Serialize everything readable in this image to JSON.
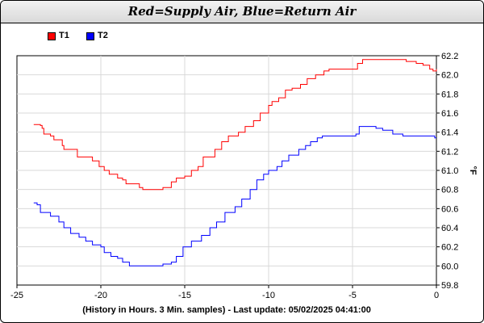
{
  "chart_data": {
    "type": "line",
    "title": "Red=Supply Air, Blue=Return Air",
    "xlabel": "(History in Hours. 3 Min. samples) - Last update: 05/02/2025 04:41:00",
    "ylabel": "°F",
    "xlim": [
      -25,
      0
    ],
    "ylim": [
      59.8,
      62.2
    ],
    "x_ticks": [
      -25,
      -20,
      -15,
      -10,
      -5,
      0
    ],
    "y_ticks": [
      59.8,
      60.0,
      60.2,
      60.4,
      60.6,
      60.8,
      61.0,
      61.2,
      61.4,
      61.6,
      61.8,
      62.0,
      62.2
    ],
    "grid": true,
    "legend_position": "top-left",
    "series": [
      {
        "name": "T1",
        "color": "#ff0000",
        "x": [
          -24,
          -23.6,
          -23.5,
          -23.4,
          -23,
          -22.8,
          -22.3,
          -22.2,
          -21.8,
          -21.4,
          -20.8,
          -20.5,
          -20.1,
          -19.8,
          -19.5,
          -19,
          -18.7,
          -18.5,
          -17.7,
          -17.5,
          -17.0,
          -16.7,
          -16.3,
          -15.8,
          -15.5,
          -15.0,
          -14.6,
          -14.2,
          -13.9,
          -13.2,
          -12.8,
          -12.4,
          -11.8,
          -11.4,
          -10.9,
          -10.5,
          -10.0,
          -9.8,
          -9.4,
          -9.0,
          -8.6,
          -8.1,
          -7.7,
          -7.2,
          -6.7,
          -6.4,
          -6.0,
          -5.5,
          -5.2,
          -4.7,
          -4.4,
          -3.8,
          -3.2,
          -2.4,
          -1.8,
          -1.2,
          -0.8,
          -0.4,
          -0.2,
          0
        ],
        "y": [
          61.48,
          61.47,
          61.44,
          61.38,
          61.36,
          61.32,
          61.26,
          61.22,
          61.22,
          61.14,
          61.14,
          61.1,
          61.04,
          61.0,
          60.96,
          60.92,
          60.9,
          60.86,
          60.82,
          60.8,
          60.8,
          60.8,
          60.82,
          60.88,
          60.92,
          60.94,
          61.0,
          61.04,
          61.14,
          61.22,
          61.3,
          61.36,
          61.4,
          61.46,
          61.52,
          61.6,
          61.68,
          61.72,
          61.76,
          61.84,
          61.86,
          61.9,
          61.96,
          62.0,
          62.04,
          62.06,
          62.06,
          62.06,
          62.06,
          62.12,
          62.16,
          62.16,
          62.16,
          62.16,
          62.14,
          62.12,
          62.1,
          62.06,
          62.04,
          62.06
        ]
      },
      {
        "name": "T2",
        "color": "#0000ff",
        "x": [
          -24,
          -23.8,
          -23.6,
          -23,
          -22.5,
          -22.2,
          -21.8,
          -21.3,
          -20.9,
          -20.5,
          -20,
          -19.8,
          -19.4,
          -19.0,
          -18.7,
          -18.3,
          -17.5,
          -16.8,
          -16.3,
          -15.8,
          -15.5,
          -15.1,
          -14.6,
          -14.0,
          -13.5,
          -13.1,
          -12.6,
          -12.0,
          -11.6,
          -11.1,
          -10.7,
          -10.3,
          -10.0,
          -9.5,
          -9.2,
          -8.8,
          -8.2,
          -7.8,
          -7.5,
          -7.1,
          -6.8,
          -6.1,
          -5.6,
          -5.2,
          -4.8,
          -4.6,
          -4.0,
          -3.6,
          -3.2,
          -2.6,
          -2.0,
          -1.0,
          -0.4,
          -0.1,
          0
        ],
        "y": [
          60.66,
          60.64,
          60.56,
          60.52,
          60.46,
          60.4,
          60.34,
          60.3,
          60.26,
          60.22,
          60.2,
          60.14,
          60.1,
          60.08,
          60.04,
          60.0,
          60.0,
          60.0,
          60.02,
          60.04,
          60.1,
          60.2,
          60.26,
          60.32,
          60.4,
          60.46,
          60.56,
          60.62,
          60.7,
          60.8,
          60.9,
          60.96,
          61.0,
          61.04,
          61.1,
          61.16,
          61.22,
          61.26,
          61.3,
          61.34,
          61.36,
          61.36,
          61.36,
          61.36,
          61.38,
          61.46,
          61.46,
          61.44,
          61.42,
          61.38,
          61.36,
          61.36,
          61.36,
          61.34,
          61.34
        ]
      }
    ]
  }
}
